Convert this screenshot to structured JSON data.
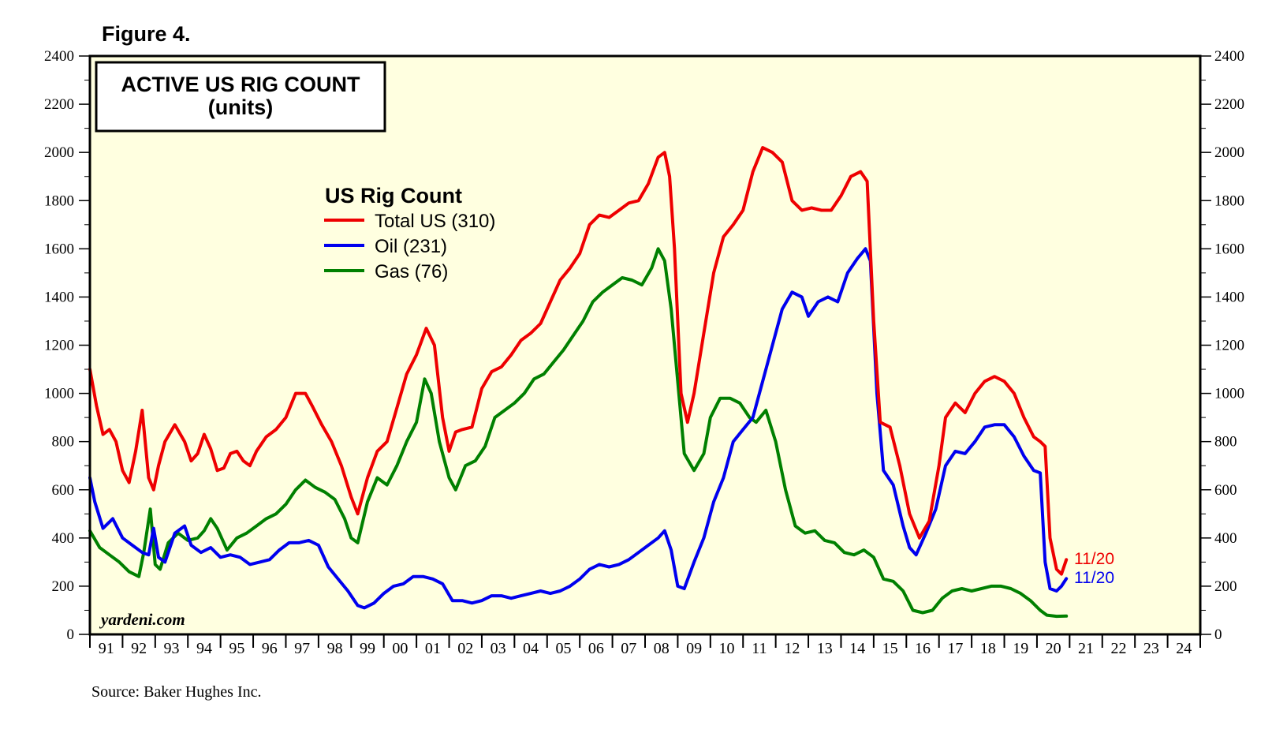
{
  "figure_label": "Figure 4.",
  "source_note": "Source: Baker Hughes Inc.",
  "watermark": "yardeni.com",
  "colors": {
    "plot_bg": "#FFFFE0",
    "total": "#EE0000",
    "oil": "#0000EE",
    "gas": "#008000"
  },
  "chart_data": {
    "type": "line",
    "title": "ACTIVE US RIG COUNT",
    "subtitle": "(units)",
    "legend_title": "US Rig Count",
    "ylim": [
      0,
      2400
    ],
    "yticks": [
      "0",
      "200",
      "400",
      "600",
      "800",
      "1000",
      "1200",
      "1400",
      "1600",
      "1800",
      "2000",
      "2200",
      "2400"
    ],
    "xlim": [
      1991,
      2025
    ],
    "categories": [
      "91",
      "92",
      "93",
      "94",
      "95",
      "96",
      "97",
      "98",
      "99",
      "00",
      "01",
      "02",
      "03",
      "04",
      "05",
      "06",
      "07",
      "08",
      "09",
      "10",
      "11",
      "12",
      "13",
      "14",
      "15",
      "16",
      "17",
      "18",
      "19",
      "20",
      "21",
      "22",
      "23",
      "24"
    ],
    "end_label": "11/20",
    "series": [
      {
        "name": "Total US (310)",
        "color": "#EE0000",
        "x": [
          1991.0,
          1991.2,
          1991.4,
          1991.6,
          1991.8,
          1992.0,
          1992.2,
          1992.4,
          1992.6,
          1992.8,
          1992.95,
          1993.1,
          1993.3,
          1993.6,
          1993.9,
          1994.1,
          1994.3,
          1994.5,
          1994.7,
          1994.9,
          1995.1,
          1995.3,
          1995.5,
          1995.7,
          1995.9,
          1996.1,
          1996.4,
          1996.7,
          1997.0,
          1997.3,
          1997.6,
          1997.8,
          1998.1,
          1998.4,
          1998.7,
          1999.0,
          1999.2,
          1999.5,
          1999.8,
          2000.1,
          2000.4,
          2000.7,
          2001.0,
          2001.3,
          2001.55,
          2001.8,
          2002.0,
          2002.2,
          2002.4,
          2002.7,
          2003.0,
          2003.3,
          2003.6,
          2003.9,
          2004.2,
          2004.5,
          2004.8,
          2005.1,
          2005.4,
          2005.7,
          2006.0,
          2006.3,
          2006.6,
          2006.9,
          2007.2,
          2007.5,
          2007.8,
          2008.1,
          2008.4,
          2008.6,
          2008.75,
          2008.9,
          2009.1,
          2009.3,
          2009.5,
          2009.8,
          2010.1,
          2010.4,
          2010.7,
          2011.0,
          2011.3,
          2011.6,
          2011.9,
          2012.2,
          2012.5,
          2012.8,
          2013.1,
          2013.4,
          2013.7,
          2014.0,
          2014.3,
          2014.6,
          2014.8,
          2015.0,
          2015.2,
          2015.5,
          2015.8,
          2016.1,
          2016.4,
          2016.7,
          2017.0,
          2017.2,
          2017.5,
          2017.8,
          2018.1,
          2018.4,
          2018.7,
          2019.0,
          2019.3,
          2019.6,
          2019.9,
          2020.1,
          2020.25,
          2020.4,
          2020.6,
          2020.75,
          2020.9
        ],
        "values": [
          1100,
          950,
          830,
          850,
          800,
          680,
          630,
          760,
          930,
          650,
          600,
          700,
          800,
          870,
          800,
          720,
          750,
          830,
          770,
          680,
          690,
          750,
          760,
          720,
          700,
          760,
          820,
          850,
          900,
          1000,
          1000,
          950,
          870,
          800,
          700,
          570,
          500,
          650,
          760,
          800,
          940,
          1080,
          1160,
          1270,
          1200,
          900,
          760,
          840,
          850,
          860,
          1020,
          1090,
          1110,
          1160,
          1220,
          1250,
          1290,
          1380,
          1470,
          1520,
          1580,
          1700,
          1740,
          1730,
          1760,
          1790,
          1800,
          1870,
          1980,
          2000,
          1900,
          1600,
          1000,
          880,
          1000,
          1250,
          1500,
          1650,
          1700,
          1760,
          1920,
          2020,
          2000,
          1960,
          1800,
          1760,
          1770,
          1760,
          1760,
          1820,
          1900,
          1920,
          1880,
          1300,
          880,
          860,
          700,
          500,
          400,
          470,
          700,
          900,
          960,
          920,
          1000,
          1050,
          1070,
          1050,
          1000,
          900,
          820,
          800,
          780,
          400,
          270,
          250,
          310
        ]
      },
      {
        "name": "Oil (231)",
        "color": "#0000EE",
        "x": [
          1991.0,
          1991.15,
          1991.4,
          1991.7,
          1992.0,
          1992.3,
          1992.6,
          1992.8,
          1992.95,
          1993.1,
          1993.3,
          1993.6,
          1993.9,
          1994.1,
          1994.4,
          1994.7,
          1995.0,
          1995.3,
          1995.6,
          1995.9,
          1996.2,
          1996.5,
          1996.8,
          1997.1,
          1997.4,
          1997.7,
          1998.0,
          1998.3,
          1998.6,
          1998.9,
          1999.2,
          1999.4,
          1999.7,
          2000.0,
          2000.3,
          2000.6,
          2000.9,
          2001.2,
          2001.5,
          2001.8,
          2002.1,
          2002.4,
          2002.7,
          2003.0,
          2003.3,
          2003.6,
          2003.9,
          2004.2,
          2004.5,
          2004.8,
          2005.1,
          2005.4,
          2005.7,
          2006.0,
          2006.3,
          2006.6,
          2006.9,
          2007.2,
          2007.5,
          2007.8,
          2008.1,
          2008.4,
          2008.6,
          2008.8,
          2009.0,
          2009.2,
          2009.5,
          2009.8,
          2010.1,
          2010.4,
          2010.7,
          2011.0,
          2011.3,
          2011.6,
          2011.9,
          2012.2,
          2012.5,
          2012.8,
          2013.0,
          2013.3,
          2013.6,
          2013.9,
          2014.2,
          2014.5,
          2014.75,
          2014.9,
          2015.1,
          2015.3,
          2015.6,
          2015.9,
          2016.1,
          2016.3,
          2016.6,
          2016.9,
          2017.2,
          2017.5,
          2017.8,
          2018.1,
          2018.4,
          2018.7,
          2019.0,
          2019.3,
          2019.6,
          2019.9,
          2020.1,
          2020.25,
          2020.4,
          2020.6,
          2020.75,
          2020.9
        ],
        "values": [
          650,
          550,
          440,
          480,
          400,
          370,
          340,
          330,
          440,
          320,
          300,
          420,
          450,
          370,
          340,
          360,
          320,
          330,
          320,
          290,
          300,
          310,
          350,
          380,
          380,
          390,
          370,
          280,
          230,
          180,
          120,
          110,
          130,
          170,
          200,
          210,
          240,
          240,
          230,
          210,
          140,
          140,
          130,
          140,
          160,
          160,
          150,
          160,
          170,
          180,
          170,
          180,
          200,
          230,
          270,
          290,
          280,
          290,
          310,
          340,
          370,
          400,
          430,
          350,
          200,
          190,
          300,
          400,
          550,
          650,
          800,
          850,
          900,
          1050,
          1200,
          1350,
          1420,
          1400,
          1320,
          1380,
          1400,
          1380,
          1500,
          1560,
          1600,
          1550,
          1000,
          680,
          620,
          450,
          360,
          330,
          420,
          520,
          700,
          760,
          750,
          800,
          860,
          870,
          870,
          820,
          740,
          680,
          670,
          300,
          190,
          180,
          200,
          231
        ]
      },
      {
        "name": "Gas (76)",
        "color": "#008000",
        "x": [
          1991.0,
          1991.3,
          1991.6,
          1991.9,
          1992.2,
          1992.5,
          1992.65,
          1992.85,
          1993.0,
          1993.15,
          1993.4,
          1993.7,
          1994.0,
          1994.3,
          1994.5,
          1994.7,
          1994.9,
          1995.2,
          1995.5,
          1995.8,
          1996.1,
          1996.4,
          1996.7,
          1997.0,
          1997.3,
          1997.6,
          1997.9,
          1998.2,
          1998.5,
          1998.8,
          1999.0,
          1999.2,
          1999.5,
          1999.8,
          2000.1,
          2000.4,
          2000.7,
          2001.0,
          2001.25,
          2001.45,
          2001.7,
          2002.0,
          2002.2,
          2002.5,
          2002.8,
          2003.1,
          2003.4,
          2003.7,
          2004.0,
          2004.3,
          2004.6,
          2004.9,
          2005.2,
          2005.5,
          2005.8,
          2006.1,
          2006.4,
          2006.7,
          2007.0,
          2007.3,
          2007.6,
          2007.9,
          2008.2,
          2008.4,
          2008.6,
          2008.8,
          2009.0,
          2009.2,
          2009.5,
          2009.8,
          2010.0,
          2010.3,
          2010.6,
          2010.9,
          2011.2,
          2011.4,
          2011.7,
          2012.0,
          2012.3,
          2012.6,
          2012.9,
          2013.2,
          2013.5,
          2013.8,
          2014.1,
          2014.4,
          2014.7,
          2015.0,
          2015.3,
          2015.6,
          2015.9,
          2016.2,
          2016.5,
          2016.8,
          2017.1,
          2017.4,
          2017.7,
          2018.0,
          2018.3,
          2018.6,
          2018.9,
          2019.2,
          2019.5,
          2019.8,
          2020.1,
          2020.3,
          2020.6,
          2020.9
        ],
        "values": [
          430,
          360,
          330,
          300,
          260,
          240,
          340,
          520,
          290,
          270,
          380,
          420,
          390,
          400,
          430,
          480,
          440,
          350,
          400,
          420,
          450,
          480,
          500,
          540,
          600,
          640,
          610,
          590,
          560,
          480,
          400,
          380,
          550,
          650,
          620,
          700,
          800,
          880,
          1060,
          1000,
          800,
          650,
          600,
          700,
          720,
          780,
          900,
          930,
          960,
          1000,
          1060,
          1080,
          1130,
          1180,
          1240,
          1300,
          1380,
          1420,
          1450,
          1480,
          1470,
          1450,
          1520,
          1600,
          1550,
          1350,
          1050,
          750,
          680,
          750,
          900,
          980,
          980,
          960,
          900,
          880,
          930,
          800,
          600,
          450,
          420,
          430,
          390,
          380,
          340,
          330,
          350,
          320,
          230,
          220,
          180,
          100,
          90,
          100,
          150,
          180,
          190,
          180,
          190,
          200,
          200,
          190,
          170,
          140,
          100,
          80,
          75,
          76
        ]
      }
    ]
  }
}
